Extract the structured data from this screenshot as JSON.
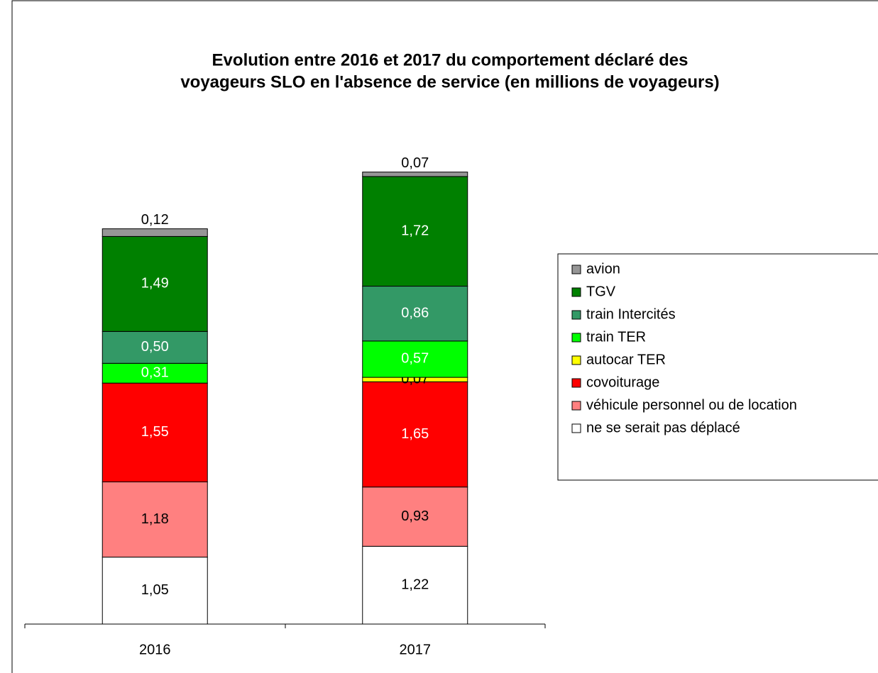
{
  "chart_data": {
    "type": "stacked_bar",
    "title": [
      "Evolution entre 2016 et 2017 du comportement déclaré des",
      "voyageurs SLO en l'absence de service (en millions de voyageurs)"
    ],
    "categories": [
      "2016",
      "2017"
    ],
    "series": [
      {
        "name": "ne se serait pas déplacé",
        "color": "#ffffff",
        "values": [
          1.05,
          1.22
        ],
        "value_labels": [
          "1,05",
          "1,22"
        ]
      },
      {
        "name": "véhicule personnel ou de location",
        "color": "#ff8080",
        "values": [
          1.18,
          0.93
        ],
        "value_labels": [
          "1,18",
          "0,93"
        ]
      },
      {
        "name": "covoiturage",
        "color": "#ff0000",
        "values": [
          1.55,
          1.65
        ],
        "value_labels": [
          "1,55",
          "1,65"
        ]
      },
      {
        "name": "autocar TER",
        "color": "#ffff00",
        "values": [
          null,
          0.07
        ],
        "value_labels": [
          null,
          "0,07"
        ]
      },
      {
        "name": "train TER",
        "color": "#00ff00",
        "values": [
          0.31,
          0.57
        ],
        "value_labels": [
          "0,31",
          "0,57"
        ]
      },
      {
        "name": "train Intercités",
        "color": "#339966",
        "values": [
          0.5,
          0.86
        ],
        "value_labels": [
          "0,50",
          "0,86"
        ]
      },
      {
        "name": "TGV",
        "color": "#008000",
        "values": [
          1.49,
          1.72
        ],
        "value_labels": [
          "1,49",
          "1,72"
        ]
      },
      {
        "name": "avion",
        "color": "#969696",
        "values": [
          0.12,
          0.07
        ],
        "value_labels": [
          "0,12",
          "0,07"
        ]
      }
    ],
    "legend": "right"
  }
}
